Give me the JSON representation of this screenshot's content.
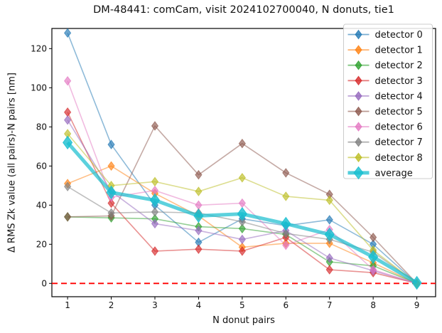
{
  "figure": {
    "background": "#ffffff"
  },
  "chart_data": {
    "type": "line",
    "title": "DM-48441:  comCam, visit 2024102700040, N donuts, tie1",
    "xlabel": "N donut pairs",
    "ylabel": "Δ RMS Zk value (all pairs)-N pairs [nm]",
    "x": [
      1,
      2,
      3,
      4,
      5,
      6,
      7,
      8,
      9
    ],
    "xticks": [
      "1",
      "2",
      "3",
      "4",
      "5",
      "6",
      "7",
      "8",
      "9"
    ],
    "yticks": [
      "0",
      "20",
      "40",
      "60",
      "80",
      "100",
      "120"
    ],
    "ytick_values": [
      0,
      20,
      40,
      60,
      80,
      100,
      120
    ],
    "xlim": [
      0.64,
      9.43
    ],
    "ylim": [
      -6.8,
      130.3
    ],
    "grid": false,
    "legend_position": "upper right",
    "marker": "thin-diamond",
    "zero_line": {
      "y": 0,
      "color": "#ff0000",
      "style": "dashed"
    },
    "series": [
      {
        "name": "detector 0",
        "color": "#1f77b4",
        "thick": false,
        "values": [
          128,
          71,
          40,
          21,
          33,
          29.5,
          32.5,
          20,
          0
        ]
      },
      {
        "name": "detector 1",
        "color": "#ff7f0e",
        "thick": false,
        "values": [
          51,
          60,
          46,
          34.5,
          18.5,
          20.5,
          20.5,
          10.5,
          0
        ]
      },
      {
        "name": "detector 2",
        "color": "#2ca02c",
        "thick": false,
        "values": [
          34,
          33.5,
          33,
          29,
          28,
          25,
          11,
          9,
          0
        ]
      },
      {
        "name": "detector 3",
        "color": "#d62728",
        "thick": false,
        "values": [
          87.5,
          41,
          16.5,
          17.5,
          16.5,
          23.5,
          7,
          5.5,
          0
        ]
      },
      {
        "name": "detector 4",
        "color": "#9467bd",
        "thick": false,
        "values": [
          83.5,
          47,
          30.5,
          27,
          22.5,
          27,
          13,
          6.5,
          0
        ]
      },
      {
        "name": "detector 5",
        "color": "#8c564b",
        "thick": false,
        "values": [
          34,
          34.5,
          80.5,
          55.5,
          71.5,
          56.5,
          45.5,
          23.5,
          0
        ]
      },
      {
        "name": "detector 6",
        "color": "#e377c2",
        "thick": false,
        "values": [
          103.5,
          44,
          47.5,
          40,
          41,
          19.5,
          27.5,
          7,
          0
        ]
      },
      {
        "name": "detector 7",
        "color": "#7f7f7f",
        "thick": false,
        "values": [
          49.5,
          36,
          36.5,
          36,
          31.5,
          25.5,
          22.5,
          16,
          0
        ]
      },
      {
        "name": "detector 8",
        "color": "#bcbd22",
        "thick": false,
        "values": [
          76.5,
          50,
          52,
          47,
          54,
          44.5,
          42.5,
          17,
          0
        ]
      },
      {
        "name": "average",
        "color": "#17becf",
        "thick": true,
        "values": [
          72,
          46.5,
          42.5,
          34.5,
          35.5,
          30.5,
          25,
          13.5,
          0.3
        ]
      }
    ]
  }
}
